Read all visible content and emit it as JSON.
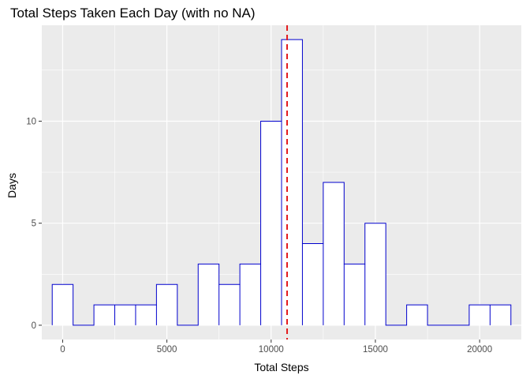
{
  "chart_data": {
    "type": "bar",
    "subtype": "histogram",
    "title": "Total Steps Taken Each Day (with no NA)",
    "xlabel": "Total Steps",
    "ylabel": "Days",
    "xlim": [
      -1000,
      22000
    ],
    "ylim": [
      -0.7,
      14.7
    ],
    "x_ticks": [
      0,
      5000,
      10000,
      15000,
      20000
    ],
    "y_ticks": [
      0,
      5,
      10
    ],
    "minor_x_ticks": [
      2500,
      7500,
      12500,
      17500
    ],
    "minor_y_ticks": [
      2.5,
      7.5,
      12.5
    ],
    "grid": true,
    "bin_width": 1000,
    "bin_start": -500,
    "values": [
      2,
      0,
      1,
      1,
      1,
      2,
      0,
      3,
      2,
      3,
      10,
      14,
      4,
      7,
      3,
      5,
      0,
      1,
      0,
      0,
      1,
      1
    ],
    "vline": {
      "x": 10766,
      "style": "dashed",
      "color": "#e31a1c"
    },
    "colors": {
      "bar_fill": "#ffffff",
      "bar_outline": "#0000cd",
      "panel_background": "#ebebeb",
      "grid": "#ffffff"
    }
  }
}
